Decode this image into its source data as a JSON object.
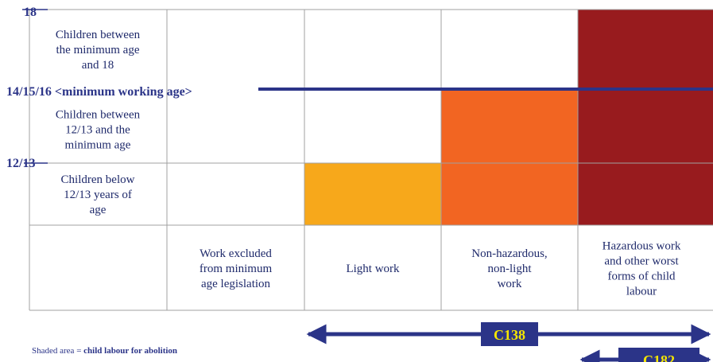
{
  "row_labels": [
    [
      "Children between",
      "the minimum age",
      "and 18"
    ],
    [
      "Children between",
      "12/13 and the",
      "minimum age"
    ],
    [
      "Children below",
      "12/13 years of",
      "age"
    ]
  ],
  "column_labels": [
    [
      "Work excluded",
      "from minimum",
      "age legislation"
    ],
    [
      "Light work"
    ],
    [
      "Non-hazardous,",
      "non-light",
      "work"
    ],
    [
      "Hazardous work",
      "and other worst",
      "forms of child",
      "labour"
    ]
  ],
  "age_marks": [
    "18",
    "14/15/16 <minimum working age>",
    "12/13"
  ],
  "conventions": [
    "C138",
    "C182"
  ],
  "legend": {
    "prefix": "Shaded area = ",
    "emphasis": "child labour for abolition"
  }
}
